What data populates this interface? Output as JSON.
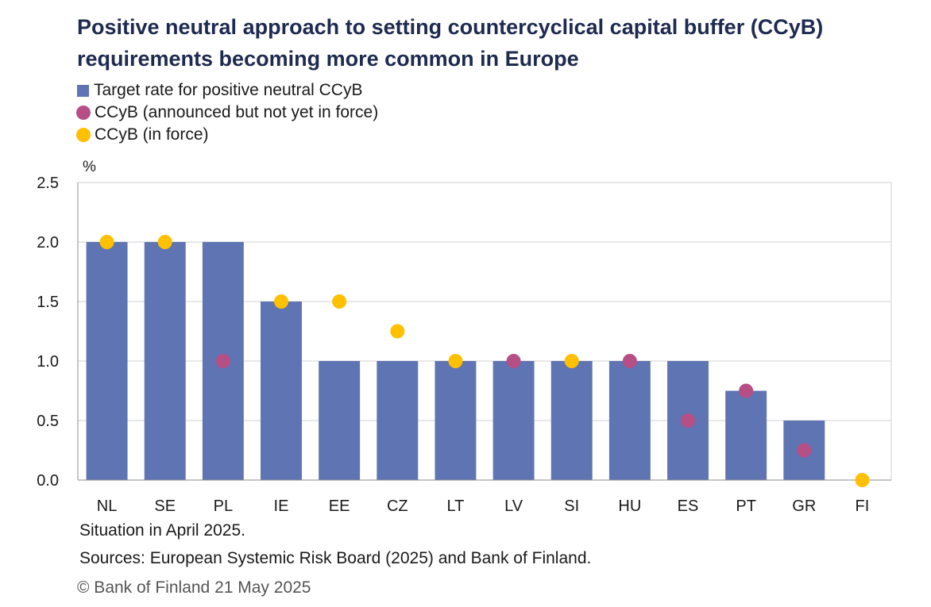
{
  "title": "Positive neutral approach to setting countercyclical capital buffer (CCyB) requirements becoming more common in Europe",
  "legend": {
    "bar": "Target rate for positive neutral CCyB",
    "announced": "CCyB (announced but not yet in force)",
    "in_force": "CCyB (in force)"
  },
  "colors": {
    "bar": "#5f74b2",
    "announced": "#b64f86",
    "in_force": "#ffc000",
    "grid": "#d0d0d0"
  },
  "chart_data": {
    "type": "bar",
    "ylabel": "%",
    "ylim": [
      0,
      2.5
    ],
    "yticks": [
      "0.0",
      "0.5",
      "1.0",
      "1.5",
      "2.0",
      "2.5"
    ],
    "grid": true,
    "legend_position": "top-left",
    "categories": [
      "NL",
      "SE",
      "PL",
      "IE",
      "EE",
      "CZ",
      "LT",
      "LV",
      "SI",
      "HU",
      "ES",
      "PT",
      "GR",
      "FI"
    ],
    "series": [
      {
        "name": "Target rate for positive neutral CCyB",
        "kind": "bar",
        "values": [
          2.0,
          2.0,
          2.0,
          1.5,
          1.0,
          1.0,
          1.0,
          1.0,
          1.0,
          1.0,
          1.0,
          0.75,
          0.5,
          0
        ]
      },
      {
        "name": "CCyB (announced but not yet in force)",
        "kind": "dot",
        "values": [
          null,
          null,
          1.0,
          null,
          null,
          null,
          null,
          1.0,
          null,
          1.0,
          0.5,
          0.75,
          0.25,
          null
        ]
      },
      {
        "name": "CCyB (in force)",
        "kind": "dot",
        "values": [
          2.0,
          2.0,
          null,
          1.5,
          1.5,
          1.25,
          1.0,
          null,
          1.0,
          null,
          null,
          null,
          null,
          0
        ]
      }
    ]
  },
  "notes": {
    "situation": "Situation in April 2025.",
    "sources": "Sources: European Systemic Risk Board (2025) and Bank of Finland.",
    "copyright": "© Bank of Finland 21 May 2025"
  }
}
